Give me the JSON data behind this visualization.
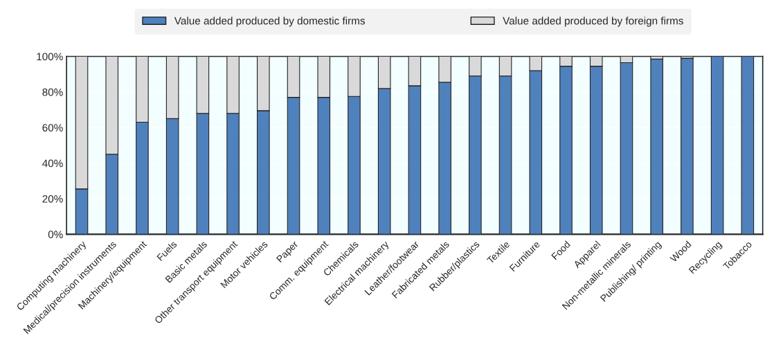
{
  "chart_data": {
    "type": "bar",
    "stacked": true,
    "categories": [
      "Computing machinery",
      "Medical/precision instruments",
      "Machinery/equipment",
      "Fuels",
      "Basic metals",
      "Other transport equipment",
      "Motor vehicles",
      "Paper",
      "Comm. equipment",
      "Chemicals",
      "Electrical machinery",
      "Leather/footwear",
      "Fabricated metals",
      "Rubber/plastics",
      "Textile",
      "Furniture",
      "Food",
      "Apparel",
      "Non-metallic minerals",
      "Publishing/ printing",
      "Wood",
      "Recycling",
      "Tobacco"
    ],
    "series": [
      {
        "name": "Value added produced by domestic firms",
        "color": "#4f81bd",
        "values": [
          25.5,
          45,
          63,
          65,
          68,
          68,
          69.5,
          77,
          77,
          77.5,
          82,
          83.5,
          85.5,
          89,
          89,
          92,
          94.5,
          94.5,
          96.5,
          98.5,
          99,
          100,
          100
        ]
      },
      {
        "name": "Value added produced by foreign firms",
        "color": "#d9d9d9",
        "values": [
          74.5,
          55,
          37,
          35,
          32,
          32,
          30.5,
          23,
          23,
          22.5,
          18,
          16.5,
          14.5,
          11,
          11,
          8,
          5.5,
          5.5,
          3.5,
          1.5,
          1,
          0,
          0
        ]
      }
    ],
    "ylim": [
      0,
      100
    ],
    "yticks": [
      {
        "value": 0,
        "label": "0%"
      },
      {
        "value": 20,
        "label": "20%"
      },
      {
        "value": 40,
        "label": "40%"
      },
      {
        "value": 60,
        "label": "60%"
      },
      {
        "value": 80,
        "label": "80%"
      },
      {
        "value": 100,
        "label": "100%"
      }
    ],
    "grid": "y",
    "legend": "top"
  }
}
